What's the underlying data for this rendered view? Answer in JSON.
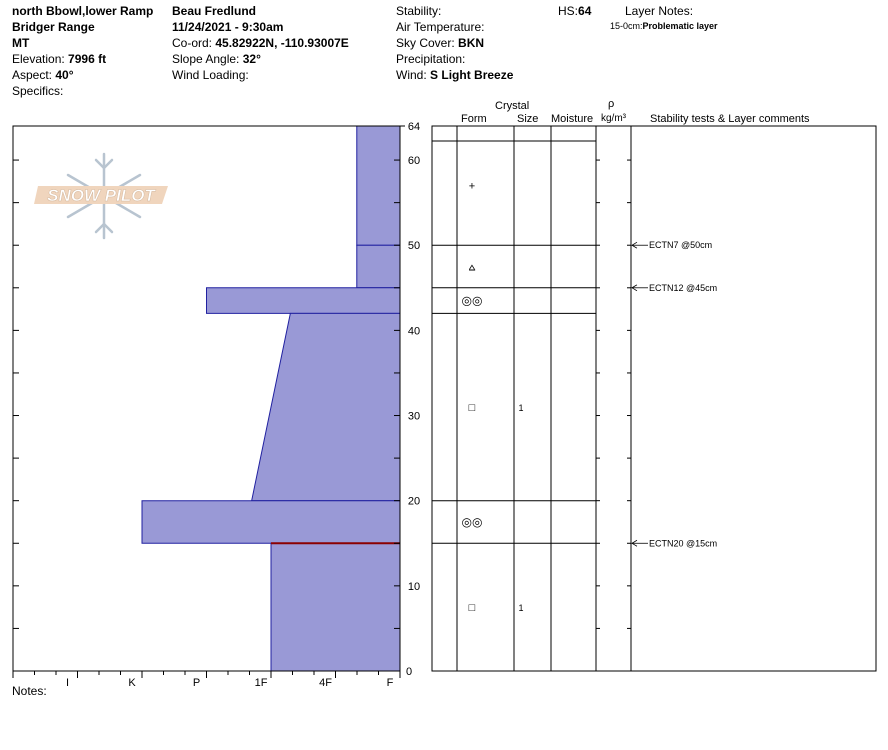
{
  "header": {
    "location": "north Bbowl,lower Ramp",
    "range": "Bridger Range",
    "state": "MT",
    "elevation_label": "Elevation:",
    "elevation": "7996 ft",
    "aspect_label": "Aspect:",
    "aspect": "40°",
    "specifics_label": "Specifics:",
    "observer": "Beau  Fredlund",
    "datetime": "11/24/2021 - 9:30am",
    "coord_label": "Co-ord:",
    "coord": "45.82922N, -110.93007E",
    "slope_label": "Slope Angle:",
    "slope": "32°",
    "wind_loading_label": "Wind Loading:",
    "stability_label": "Stability:",
    "air_temp_label": "Air Temperature:",
    "sky_label": "Sky Cover:",
    "sky": "BKN",
    "precip_label": "Precipitation:",
    "wind_label": "Wind:",
    "wind": " S Light Breeze",
    "hs_label": "HS:",
    "hs": "64",
    "layer_notes_label": "Layer Notes:",
    "layer_note_range": "15-0cm:",
    "layer_note_text": "Problematic layer"
  },
  "logo_text": "SNOW PILOT",
  "notes_label": "Notes:",
  "colors": {
    "layer_fill": "#9999d6",
    "layer_stroke": "#2020a0",
    "problem_line": "#8b0000"
  },
  "chart_data": {
    "type": "snow-profile",
    "y_unit": "cm",
    "ylim": [
      0,
      64
    ],
    "y_ticks": [
      0,
      10,
      20,
      30,
      40,
      50,
      60,
      64
    ],
    "hardness_ticks": [
      "I",
      "K",
      "P",
      "1F",
      "4F",
      "F"
    ],
    "table_headers": {
      "crystal": "Crystal",
      "form": "Form",
      "size": "Size",
      "moisture": "Moisture",
      "density_symbol": "ρ",
      "density_unit": "kg/m³",
      "comments": "Stability tests & Layer comments"
    },
    "layers": [
      {
        "top": 64,
        "bottom": 50,
        "hardness_top": 0.67,
        "hardness_bottom": 0.67,
        "form": "+",
        "size": ""
      },
      {
        "top": 50,
        "bottom": 45,
        "hardness_top": 0.67,
        "hardness_bottom": 0.67,
        "form": "⩟",
        "size": ""
      },
      {
        "top": 45,
        "bottom": 42,
        "hardness_top": 3.0,
        "hardness_bottom": 3.0,
        "form": "◎◎",
        "size": ""
      },
      {
        "top": 42,
        "bottom": 20,
        "hardness_top": 1.7,
        "hardness_bottom": 2.3,
        "form": "□",
        "size": "1"
      },
      {
        "top": 20,
        "bottom": 15,
        "hardness_top": 4.0,
        "hardness_bottom": 4.0,
        "form": "◎◎",
        "size": ""
      },
      {
        "top": 15,
        "bottom": 0,
        "hardness_top": 2.0,
        "hardness_bottom": 2.0,
        "form": "□",
        "size": "1"
      }
    ],
    "problem_layer_depth": 15,
    "stability_tests": [
      {
        "depth": 50,
        "label": "ECTN7 @50cm"
      },
      {
        "depth": 45,
        "label": "ECTN12 @45cm"
      },
      {
        "depth": 15,
        "label": "ECTN20 @15cm"
      }
    ]
  }
}
